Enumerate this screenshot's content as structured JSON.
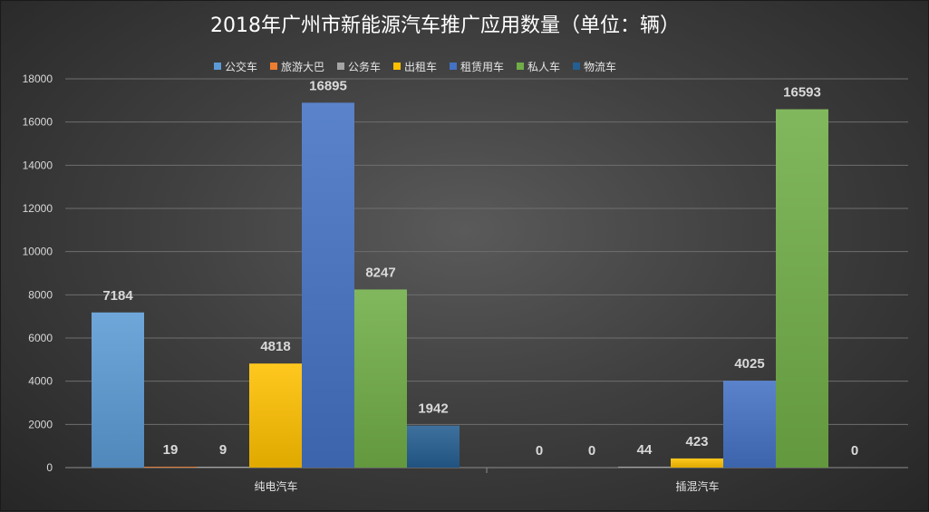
{
  "title": "2018年广州市新能源汽车推广应用数量（单位：辆）",
  "chart_data": {
    "type": "bar",
    "title": "2018年广州市新能源汽车推广应用数量（单位：辆）",
    "categories": [
      "纯电汽车",
      "插混汽车"
    ],
    "series": [
      {
        "name": "公交车",
        "values": [
          7184,
          0
        ],
        "color": "#5b9bd5"
      },
      {
        "name": "旅游大巴",
        "values": [
          19,
          0
        ],
        "color": "#ed7d31"
      },
      {
        "name": "公务车",
        "values": [
          9,
          44
        ],
        "color": "#a5a5a5"
      },
      {
        "name": "出租车",
        "values": [
          4818,
          423
        ],
        "color": "#ffc000"
      },
      {
        "name": "租赁用车",
        "values": [
          16895,
          4025
        ],
        "color": "#4472c4"
      },
      {
        "name": "私人车",
        "values": [
          8247,
          16593
        ],
        "color": "#70ad47"
      },
      {
        "name": "物流车",
        "values": [
          1942,
          0
        ],
        "color": "#255e91"
      }
    ],
    "ylim": [
      0,
      18000
    ],
    "yticks": [
      0,
      2000,
      4000,
      6000,
      8000,
      10000,
      12000,
      14000,
      16000,
      18000
    ],
    "xlabel": "",
    "ylabel": "",
    "legend_position": "top",
    "grid": true
  }
}
